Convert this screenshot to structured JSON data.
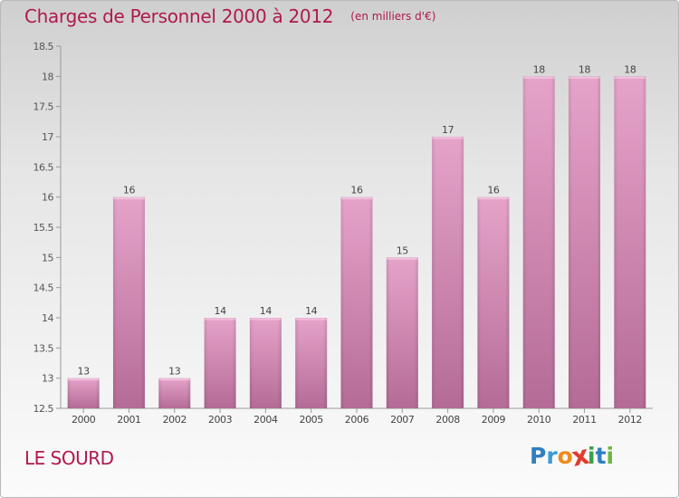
{
  "title": "Charges de Personnel 2000 à 2012",
  "subtitle": "(en milliers d'€)",
  "commune": "LE SOURD",
  "brand": {
    "text": "Proxiti",
    "letters": [
      {
        "ch": "P",
        "color": "#2f7fc1"
      },
      {
        "ch": "r",
        "color": "#3c9ad8"
      },
      {
        "ch": "o",
        "color": "#f08a1a"
      },
      {
        "ch": "x",
        "color": "#e03c2d"
      },
      {
        "ch": "i",
        "color": "#3aa04a"
      },
      {
        "ch": "t",
        "color": "#2f7fc1"
      },
      {
        "ch": "i",
        "color": "#6bb642"
      }
    ]
  },
  "colors": {
    "title": "#b0194f",
    "bar_top": "#e6a3ca",
    "bar_bottom": "#b46c96",
    "axis": "#9a9a9a"
  },
  "chart_data": {
    "type": "bar",
    "categories": [
      "2000",
      "2001",
      "2002",
      "2003",
      "2004",
      "2005",
      "2006",
      "2007",
      "2008",
      "2009",
      "2010",
      "2011",
      "2012"
    ],
    "values": [
      13,
      16,
      13,
      14,
      14,
      14,
      16,
      15,
      17,
      16,
      18,
      18,
      18
    ],
    "labels": [
      "13",
      "16",
      "13",
      "14",
      "14",
      "14",
      "16",
      "15",
      "17",
      "16",
      "18",
      "18",
      "18"
    ],
    "yticks": [
      "12.5",
      "13",
      "13.5",
      "14",
      "14.5",
      "15",
      "15.5",
      "16",
      "16.5",
      "17",
      "17.5",
      "18",
      "18.5"
    ],
    "ylim": [
      12.5,
      18.5
    ],
    "grid": false,
    "xlabel": "",
    "ylabel": ""
  }
}
